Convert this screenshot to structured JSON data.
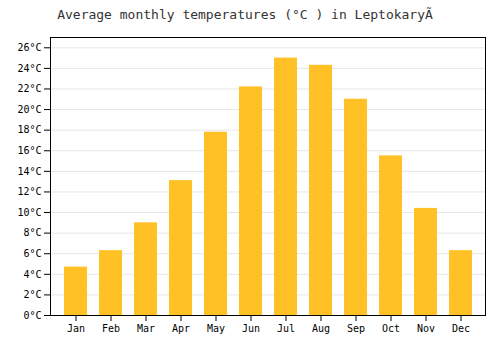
{
  "chart_data": {
    "type": "bar",
    "title": "Average monthly temperatures (°C ) in LeptokaryÃ",
    "categories": [
      "Jan",
      "Feb",
      "Mar",
      "Apr",
      "May",
      "Jun",
      "Jul",
      "Aug",
      "Sep",
      "Oct",
      "Nov",
      "Dec"
    ],
    "values": [
      4.7,
      6.3,
      9.0,
      13.1,
      17.8,
      22.2,
      25.0,
      24.3,
      21.0,
      15.5,
      10.4,
      6.3
    ],
    "color": "#FFC125",
    "ylim": [
      0,
      27
    ],
    "yticks": [
      {
        "value": 0,
        "label": "0°C"
      },
      {
        "value": 2,
        "label": "2°C"
      },
      {
        "value": 4,
        "label": "4°C"
      },
      {
        "value": 6,
        "label": "6°C"
      },
      {
        "value": 8,
        "label": "8°C"
      },
      {
        "value": 10,
        "label": "10°C"
      },
      {
        "value": 12,
        "label": "12°C"
      },
      {
        "value": 14,
        "label": "14°C"
      },
      {
        "value": 16,
        "label": "16°C"
      },
      {
        "value": 18,
        "label": "18°C"
      },
      {
        "value": 20,
        "label": "20°C"
      },
      {
        "value": 22,
        "label": "22°C"
      },
      {
        "value": 24,
        "label": "24°C"
      },
      {
        "value": 26,
        "label": "26°C"
      }
    ],
    "grid": true
  }
}
